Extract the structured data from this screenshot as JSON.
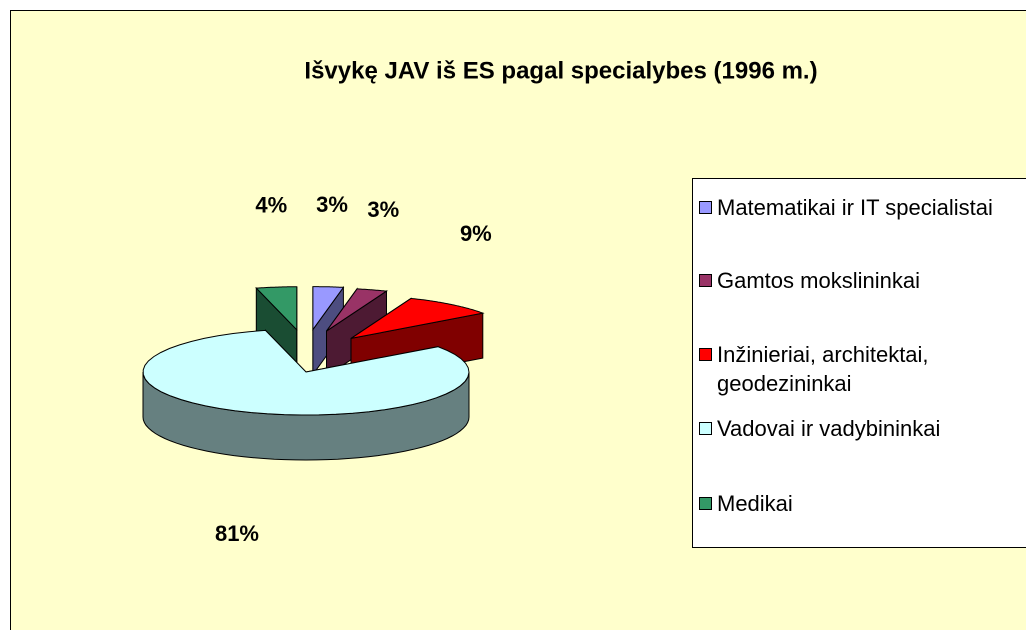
{
  "chart_data": {
    "type": "pie3d",
    "title": "Išvykę JAV iš ES pagal specialybes (1996 m.)",
    "categories": [
      "Matematikai ir IT specialistai",
      "Gamtos mokslininkai",
      "Inžinieriai, architektai, geodezininkai",
      "Vadovai ir vadybininkai",
      "Medikai"
    ],
    "values": [
      3,
      3,
      9,
      81,
      4
    ],
    "value_labels": [
      "3%",
      "3%",
      "9%",
      "81%",
      "4%"
    ],
    "colors": [
      "#9999ff",
      "#993366",
      "#ff0000",
      "#ccffff",
      "#339966"
    ],
    "legend": "right"
  }
}
